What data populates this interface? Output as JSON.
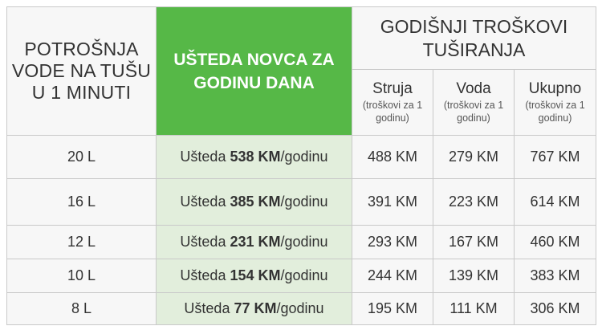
{
  "header": {
    "consumption_title": "POTROŠNJA VODE NA TUŠU U 1 MINUTI",
    "savings_title": "UŠTEDA NOVCA ZA GODINU DANA",
    "costs_title": "GODIŠNJI TROŠKOVI TUŠIRANJA",
    "sub_columns": [
      {
        "title": "Struja",
        "note": "(troškovi za 1 godinu)"
      },
      {
        "title": "Voda",
        "note": "(troškovi za 1 godinu)"
      },
      {
        "title": "Ukupno",
        "note": "(troškovi za 1 godinu)"
      }
    ]
  },
  "savings_prefix": "Ušteda",
  "savings_suffix": "/godinu",
  "rows": [
    {
      "liters": "20 L",
      "savings": "538 KM",
      "struja": "488 KM",
      "voda": "279 KM",
      "ukupno": "767 KM"
    },
    {
      "liters": "16 L",
      "savings": "385 KM",
      "struja": "391 KM",
      "voda": "223 KM",
      "ukupno": "614 KM"
    },
    {
      "liters": "12 L",
      "savings": "231 KM",
      "struja": "293 KM",
      "voda": "167 KM",
      "ukupno": "460 KM"
    },
    {
      "liters": "10 L",
      "savings": "154 KM",
      "struja": "244 KM",
      "voda": "139 KM",
      "ukupno": "383 KM"
    },
    {
      "liters": "8 L",
      "savings": "77 KM",
      "struja": "195 KM",
      "voda": "111 KM",
      "ukupno": "306 KM"
    }
  ],
  "colors": {
    "green_header": "#56b847",
    "savings_cell": "#e2eedc",
    "grid": "#c9c9c9"
  }
}
